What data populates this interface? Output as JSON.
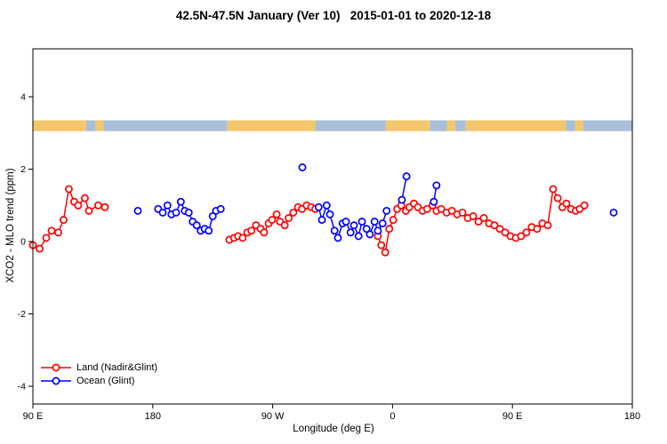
{
  "title": "42.5N-47.5N January (Ver 10)   2015-01-01 to 2020-12-18",
  "chart_data": {
    "type": "scatter",
    "title": "42.5N-47.5N January (Ver 10)   2015-01-01 to 2020-12-18",
    "xlabel": "Longitude (deg E)",
    "ylabel": "XCO2 - MLO trend (ppm)",
    "x_range": [
      0,
      450
    ],
    "y_range": [
      -4.5,
      5.3
    ],
    "grid": false,
    "legend_position": "bottom-left",
    "x_ticks": [
      {
        "deg": 0,
        "label": "90 E"
      },
      {
        "deg": 90,
        "label": "180"
      },
      {
        "deg": 180,
        "label": "90 W"
      },
      {
        "deg": 270,
        "label": "0"
      },
      {
        "deg": 360,
        "label": "90 E"
      },
      {
        "deg": 450,
        "label": "180"
      }
    ],
    "y_ticks": [
      -4,
      -2,
      0,
      2,
      4
    ],
    "colors": {
      "land": "#ff0000",
      "ocean": "#0000ff",
      "strip_land": "#f4c76d",
      "strip_ocean": "#a9bfd8"
    },
    "map_strip": {
      "y_top": 3.35,
      "y_bottom": 3.05,
      "segments": [
        {
          "from": 0,
          "to": 40,
          "type": "land"
        },
        {
          "from": 40,
          "to": 47,
          "type": "ocean"
        },
        {
          "from": 47,
          "to": 53,
          "type": "land"
        },
        {
          "from": 53,
          "to": 146,
          "type": "ocean"
        },
        {
          "from": 146,
          "to": 212,
          "type": "land"
        },
        {
          "from": 212,
          "to": 265,
          "type": "ocean"
        },
        {
          "from": 265,
          "to": 298,
          "type": "land"
        },
        {
          "from": 298,
          "to": 311,
          "type": "ocean"
        },
        {
          "from": 311,
          "to": 317,
          "type": "land"
        },
        {
          "from": 317,
          "to": 325,
          "type": "ocean"
        },
        {
          "from": 325,
          "to": 400,
          "type": "land"
        },
        {
          "from": 400,
          "to": 407,
          "type": "ocean"
        },
        {
          "from": 407,
          "to": 413,
          "type": "land"
        },
        {
          "from": 413,
          "to": 450,
          "type": "ocean"
        }
      ]
    },
    "series": [
      {
        "key": "land",
        "name": "Land (Nadir&Glint)",
        "color_key": "land",
        "points": [
          [
            0,
            -0.1
          ],
          [
            5,
            -0.2
          ],
          [
            10,
            0.1
          ],
          [
            14,
            0.3
          ],
          [
            19,
            0.25
          ],
          [
            23,
            0.6
          ],
          [
            27,
            1.45
          ],
          [
            31,
            1.1
          ],
          [
            34,
            1.0
          ],
          [
            39,
            1.2
          ],
          [
            42,
            0.85
          ],
          [
            49,
            1.0
          ],
          [
            54,
            0.95
          ],
          [
            147.5,
            0.05
          ],
          [
            151,
            0.1
          ],
          [
            154,
            0.15
          ],
          [
            157.5,
            0.1
          ],
          [
            161,
            0.25
          ],
          [
            164,
            0.3
          ],
          [
            167.5,
            0.45
          ],
          [
            171,
            0.35
          ],
          [
            173.5,
            0.25
          ],
          [
            177,
            0.5
          ],
          [
            179.5,
            0.6
          ],
          [
            183,
            0.75
          ],
          [
            185.5,
            0.55
          ],
          [
            189,
            0.45
          ],
          [
            192,
            0.65
          ],
          [
            195.5,
            0.8
          ],
          [
            199,
            0.95
          ],
          [
            202,
            0.9
          ],
          [
            205.5,
            1.0
          ],
          [
            209,
            0.95
          ],
          [
            212,
            0.9
          ],
          [
            259,
            0.15
          ],
          [
            261.5,
            -0.1
          ],
          [
            264.5,
            -0.3
          ],
          [
            267.5,
            0.35
          ],
          [
            270.5,
            0.6
          ],
          [
            273.5,
            0.9
          ],
          [
            276.5,
            1.0
          ],
          [
            280,
            0.85
          ],
          [
            282.5,
            0.95
          ],
          [
            286,
            1.05
          ],
          [
            289,
            0.95
          ],
          [
            292.5,
            0.85
          ],
          [
            296,
            0.9
          ],
          [
            300,
            1.0
          ],
          [
            303,
            0.85
          ],
          [
            306.5,
            0.9
          ],
          [
            310.5,
            0.8
          ],
          [
            314.5,
            0.85
          ],
          [
            318.5,
            0.75
          ],
          [
            322.5,
            0.8
          ],
          [
            326.5,
            0.65
          ],
          [
            330.5,
            0.7
          ],
          [
            334.5,
            0.55
          ],
          [
            338.5,
            0.65
          ],
          [
            342.5,
            0.5
          ],
          [
            346.5,
            0.45
          ],
          [
            350.5,
            0.35
          ],
          [
            354.5,
            0.25
          ],
          [
            358.5,
            0.15
          ],
          [
            362.5,
            0.1
          ],
          [
            366.5,
            0.15
          ],
          [
            370.5,
            0.25
          ],
          [
            374.5,
            0.4
          ],
          [
            378.5,
            0.35
          ],
          [
            382.5,
            0.5
          ],
          [
            386.5,
            0.45
          ],
          [
            390.5,
            1.45
          ],
          [
            394,
            1.2
          ],
          [
            397.5,
            0.95
          ],
          [
            400.5,
            1.05
          ],
          [
            404,
            0.9
          ],
          [
            407.5,
            0.85
          ],
          [
            410.5,
            0.9
          ],
          [
            414,
            1.0
          ]
        ]
      },
      {
        "key": "ocean",
        "name": "Ocean (Glint)",
        "color_key": "ocean",
        "points": [
          [
            78.8,
            0.85
          ],
          [
            94,
            0.9
          ],
          [
            97.5,
            0.8
          ],
          [
            101,
            1.0
          ],
          [
            104,
            0.75
          ],
          [
            107.5,
            0.8
          ],
          [
            111,
            1.1
          ],
          [
            114,
            0.85
          ],
          [
            117,
            0.8
          ],
          [
            120,
            0.55
          ],
          [
            123,
            0.45
          ],
          [
            126,
            0.3
          ],
          [
            129,
            0.35
          ],
          [
            132,
            0.3
          ],
          [
            135,
            0.7
          ],
          [
            137.5,
            0.85
          ],
          [
            141,
            0.9
          ],
          [
            202.3,
            2.05
          ],
          [
            214.5,
            0.95
          ],
          [
            217,
            0.6
          ],
          [
            220.5,
            1.0
          ],
          [
            223,
            0.75
          ],
          [
            226.5,
            0.3
          ],
          [
            229,
            0.1
          ],
          [
            232.5,
            0.5
          ],
          [
            235,
            0.55
          ],
          [
            238.5,
            0.25
          ],
          [
            241,
            0.45
          ],
          [
            244.5,
            0.15
          ],
          [
            247,
            0.55
          ],
          [
            250.5,
            0.35
          ],
          [
            253,
            0.2
          ],
          [
            256.5,
            0.55
          ],
          [
            259,
            0.3
          ],
          [
            262.5,
            0.5
          ],
          [
            265.5,
            0.85
          ],
          [
            277,
            1.15
          ],
          [
            280.5,
            1.8
          ],
          [
            301,
            1.1
          ],
          [
            303,
            1.55
          ],
          [
            436,
            0.8
          ]
        ]
      }
    ]
  }
}
